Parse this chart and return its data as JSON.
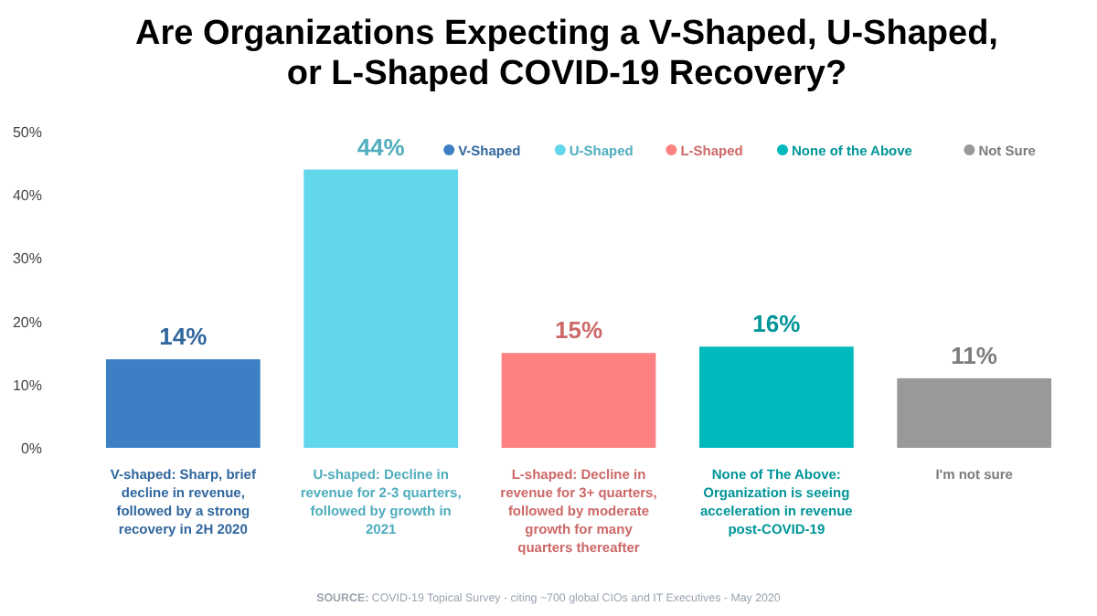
{
  "chart_data": {
    "type": "bar",
    "title": "Are Organizations Expecting a V-Shaped, U-Shaped,\nor L-Shaped COVID-19 Recovery?",
    "categories": [
      "V-shaped: Sharp, brief\ndecline in revenue,\nfollowed by a strong\nrecovery in 2H 2020",
      "U-shaped: Decline in\nrevenue for 2-3 quarters,\nfollowed by growth in\n2021",
      "L-shaped: Decline in\nrevenue for 3+ quarters,\nfollowed by moderate\ngrowth for many\nquarters thereafter",
      "None of The Above:\nOrganization is seeing\nacceleration in revenue\npost-COVID-19",
      "I'm not sure"
    ],
    "series": [
      {
        "name": "V-Shaped",
        "color": "#3d7fc4",
        "values": [
          14,
          null,
          null,
          null,
          null
        ],
        "value_labels": [
          "14%",
          null,
          null,
          null,
          null
        ]
      },
      {
        "name": "U-Shaped",
        "color": "#62d6ea",
        "values": [
          null,
          44,
          null,
          null,
          null
        ],
        "value_labels": [
          null,
          "44%",
          null,
          null,
          null
        ]
      },
      {
        "name": "L-Shaped",
        "color": "#fe8181",
        "values": [
          null,
          null,
          15,
          null,
          null
        ],
        "value_labels": [
          null,
          null,
          "15%",
          null,
          null
        ]
      },
      {
        "name": "None of the Above",
        "color": "#00b9bd",
        "values": [
          null,
          null,
          null,
          16,
          null
        ],
        "value_labels": [
          null,
          null,
          null,
          "16%",
          null
        ]
      },
      {
        "name": "Not Sure",
        "color": "#999999",
        "values": [
          null,
          null,
          null,
          null,
          11
        ],
        "value_labels": [
          null,
          null,
          null,
          null,
          "11%"
        ]
      }
    ],
    "ylim": [
      0,
      50
    ],
    "yticks": [
      {
        "value": 0,
        "label": "0%"
      },
      {
        "value": 10,
        "label": "10%"
      },
      {
        "value": 20,
        "label": "20%"
      },
      {
        "value": 30,
        "label": "30%"
      },
      {
        "value": 40,
        "label": "40%"
      },
      {
        "value": 50,
        "label": "50%"
      }
    ],
    "legend": "top right",
    "grid": false,
    "annotations": [
      "SOURCE: COVID-19 Topical Survey - citing ~700 global CIOs and IT Executives - May 2020"
    ]
  }
}
